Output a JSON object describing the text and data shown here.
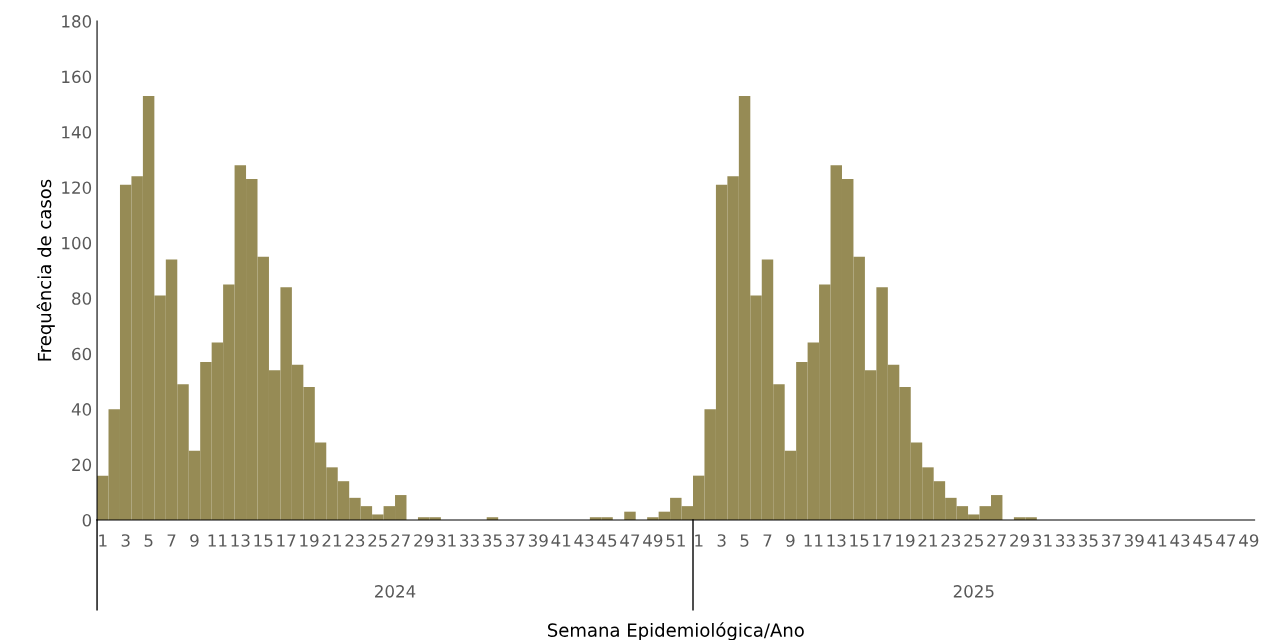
{
  "chart_data": {
    "type": "bar",
    "ylabel": "Frequência de casos",
    "xlabel": "Semana Epidemiológica/Ano",
    "categories": [
      "1",
      null,
      "3",
      null,
      "5",
      null,
      "7",
      null,
      "9",
      null,
      "11",
      null,
      "13",
      null,
      "15",
      null,
      "17",
      null,
      "19",
      null,
      "21",
      null,
      "23",
      null,
      "25",
      null,
      "27",
      null,
      "29",
      null,
      "31",
      null,
      "33",
      null,
      "35",
      null,
      "37",
      null,
      "39",
      null,
      "41",
      null,
      "43",
      null,
      "45",
      null,
      "47",
      null,
      "49",
      null,
      "51",
      null,
      "1",
      null,
      "3",
      null,
      "5",
      null,
      "7",
      null,
      "9",
      null,
      "11",
      null,
      "13",
      null,
      "15",
      null,
      "17",
      null,
      "19",
      null,
      "21",
      null,
      "23",
      null,
      "25",
      null,
      "27",
      null,
      "29",
      null,
      "31",
      null,
      "33",
      null,
      "35",
      null,
      "37",
      null,
      "39",
      null,
      "41",
      null,
      "43",
      null,
      "45",
      null,
      "47",
      null,
      "49"
    ],
    "values": [
      16,
      40,
      121,
      124,
      153,
      81,
      94,
      49,
      25,
      57,
      64,
      85,
      128,
      123,
      95,
      54,
      84,
      56,
      48,
      28,
      19,
      14,
      8,
      5,
      2,
      5,
      9,
      0,
      1,
      1,
      0,
      0,
      0,
      0,
      1,
      0,
      0,
      0,
      0,
      0,
      0,
      0,
      0,
      1,
      1,
      0,
      3,
      0,
      1,
      3,
      8,
      5,
      16,
      40,
      121,
      124,
      153,
      81,
      94,
      49,
      25,
      57,
      64,
      85,
      128,
      123,
      95,
      54,
      84,
      56,
      48,
      28,
      19,
      14,
      8,
      5,
      2,
      5,
      9,
      0,
      1,
      1,
      0,
      0,
      0,
      0,
      0,
      0,
      0,
      0,
      0,
      0,
      0,
      0,
      0,
      0,
      0,
      0,
      0,
      0,
      0
    ],
    "color": "#968b55",
    "ylim": [
      0,
      180
    ],
    "yticks": [
      0,
      20,
      40,
      60,
      80,
      100,
      120,
      140,
      160,
      180
    ],
    "annotations": [
      "2024",
      "2025"
    ],
    "grid": false
  }
}
